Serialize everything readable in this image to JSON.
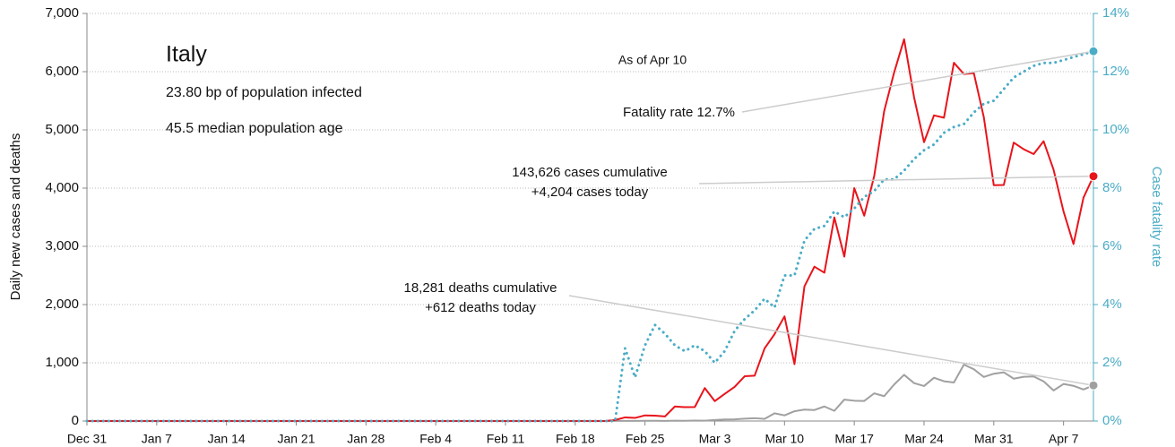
{
  "chart_data": {
    "type": "line",
    "title": "Italy",
    "notes": [
      "23.80 bp of population infected",
      "45.5 median population age"
    ],
    "as_of": "As of Apr 10",
    "annotations": [
      [
        "Fatality rate 12.7%"
      ],
      [
        "143,626 cases cumulative",
        "+4,204 cases today"
      ],
      [
        "18,281 deaths cumulative",
        "+612 deaths today"
      ]
    ],
    "ylabel": "Daily new cases and deaths",
    "y2label": "Case fatality rate",
    "x": [
      "Dec 31",
      "Feb 21",
      "Feb 22",
      "Feb 23",
      "Feb 24",
      "Feb 25",
      "Feb 26",
      "Feb 27",
      "Feb 28",
      "Feb 29",
      "Mar 1",
      "Mar 2",
      "Mar 3",
      "Mar 4",
      "Mar 5",
      "Mar 6",
      "Mar 7",
      "Mar 8",
      "Mar 9",
      "Mar 10",
      "Mar 11",
      "Mar 12",
      "Mar 13",
      "Mar 14",
      "Mar 15",
      "Mar 16",
      "Mar 17",
      "Mar 18",
      "Mar 19",
      "Mar 20",
      "Mar 21",
      "Mar 22",
      "Mar 23",
      "Mar 24",
      "Mar 25",
      "Mar 26",
      "Mar 27",
      "Mar 28",
      "Mar 29",
      "Mar 30",
      "Mar 31",
      "Apr 1",
      "Apr 2",
      "Apr 3",
      "Apr 4",
      "Apr 5",
      "Apr 6",
      "Apr 7",
      "Apr 8",
      "Apr 9",
      "Apr 10"
    ],
    "series": [
      {
        "name": "Fatality rate",
        "color": "#4bacc6",
        "axis": "y2",
        "style": "dotted",
        "values": [
          0,
          0,
          0,
          2.5,
          1.5,
          2.6,
          3.3,
          3.0,
          2.6,
          2.4,
          2.6,
          2.4,
          2.0,
          2.4,
          3.1,
          3.5,
          3.8,
          4.2,
          3.9,
          5.0,
          5.0,
          6.2,
          6.6,
          6.7,
          7.2,
          7.0,
          7.3,
          7.7,
          7.9,
          8.3,
          8.3,
          8.6,
          9.0,
          9.3,
          9.5,
          9.9,
          10.1,
          10.2,
          10.6,
          10.9,
          11.0,
          11.4,
          11.8,
          12.0,
          12.2,
          12.3,
          12.3,
          12.4,
          12.5,
          12.6,
          12.7
        ]
      },
      {
        "name": "Cases",
        "color": "#e8141b",
        "values": [
          0,
          0,
          17,
          62,
          53,
          97,
          93,
          78,
          250,
          238,
          240,
          566,
          342,
          466,
          587,
          769,
          778,
          1247,
          1492,
          1797,
          977,
          2313,
          2651,
          2547,
          3497,
          2823,
          4000,
          3526,
          4207,
          5322,
          5986,
          6557,
          5560,
          4789,
          5249,
          5210,
          6153,
          5959,
          5974,
          5217,
          4050,
          4053,
          4782,
          4668,
          4585,
          4805,
          4316,
          3599,
          3039,
          3836,
          4204
        ]
      },
      {
        "name": "Deaths",
        "color": "#a0a0a0",
        "values": [
          0,
          0,
          1,
          1,
          1,
          4,
          3,
          2,
          5,
          4,
          8,
          5,
          18,
          27,
          28,
          41,
          49,
          36,
          133,
          97,
          168,
          196,
          189,
          250,
          175,
          368,
          349,
          345,
          475,
          427,
          627,
          793,
          651,
          601,
          743,
          683,
          662,
          969,
          889,
          756,
          812,
          837,
          727,
          760,
          766,
          681,
          525,
          636,
          604,
          542,
          612
        ]
      }
    ],
    "xlim": [
      "Dec 31",
      "Apr 10"
    ],
    "xticks": [
      "Dec 31",
      "Jan 7",
      "Jan 14",
      "Jan 21",
      "Jan 28",
      "Feb 4",
      "Feb 11",
      "Feb 18",
      "Feb 25",
      "Mar 3",
      "Mar 10",
      "Mar 17",
      "Mar 24",
      "Mar 31",
      "Apr 7"
    ],
    "ylim": [
      0,
      7000
    ],
    "yticks": [
      0,
      {
        "value": 1000,
        "label": "1,000"
      },
      {
        "value": 2000,
        "label": "2,000"
      },
      {
        "value": 3000,
        "label": "3,000"
      },
      {
        "value": 4000,
        "label": "4,000"
      },
      {
        "value": 5000,
        "label": "5,000"
      },
      {
        "value": 6000,
        "label": "6,000"
      },
      {
        "value": 7000,
        "label": "7,000"
      }
    ],
    "y2lim": [
      0,
      14
    ],
    "y2ticks": [
      {
        "value": 0,
        "label": "0%"
      },
      {
        "value": 2,
        "label": "2%"
      },
      {
        "value": 4,
        "label": "4%"
      },
      {
        "value": 6,
        "label": "6%"
      },
      {
        "value": 8,
        "label": "8%"
      },
      {
        "value": 10,
        "label": "10%"
      },
      {
        "value": 12,
        "label": "12%"
      },
      {
        "value": 14,
        "label": "14%"
      }
    ],
    "grid": true
  }
}
